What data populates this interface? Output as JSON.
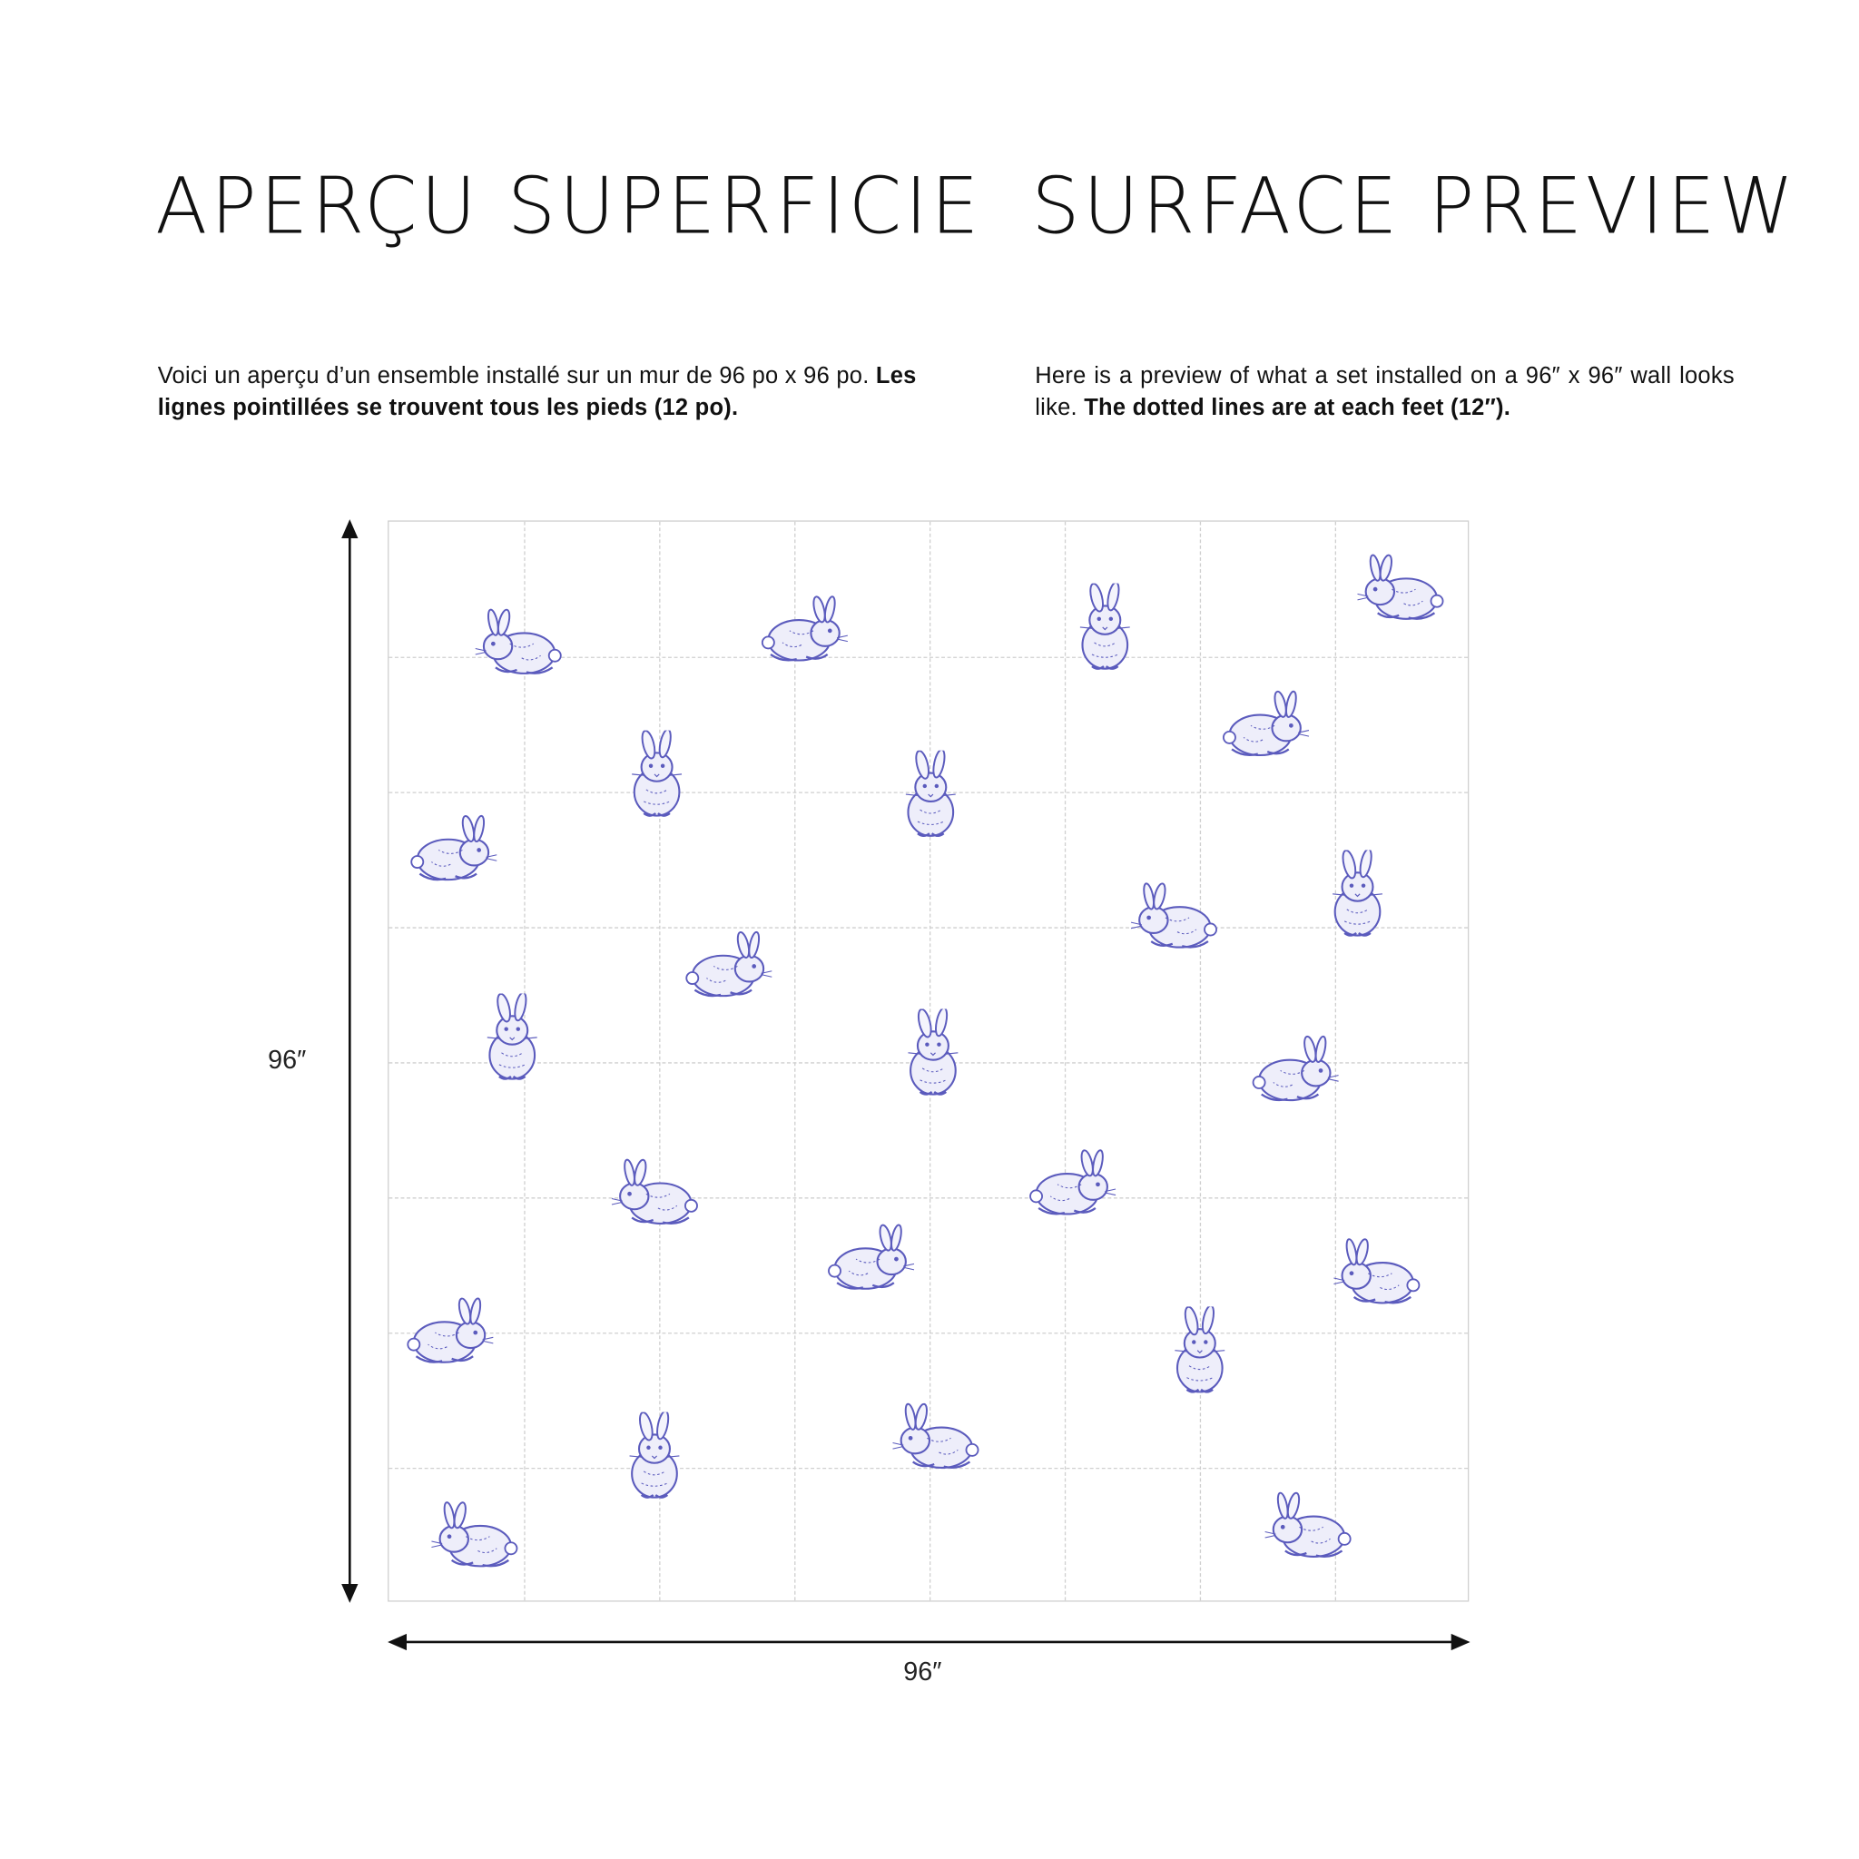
{
  "french": {
    "title": "APERÇU SUPERFICIE",
    "text_regular": "Voici un aperçu d’un ensemble installé sur un mur de 96 po x 96 po.",
    "text_bold": "Les lignes pointillées se trouvent tous les pieds (12 po)."
  },
  "english": {
    "title": "SURFACE PREVIEW",
    "text_regular": "Here is a preview of what a set installed on a 96″ x 96″ wall looks like.",
    "text_bold": "The dotted lines are at each feet (12″)."
  },
  "dimensions": {
    "height_label": "96″",
    "width_label": "96″"
  },
  "preview": {
    "grid_divisions": 8,
    "pattern_icon": "rabbit-icon",
    "pattern_color": "#5b5bbd",
    "grid_color": "#cfcfcf"
  }
}
